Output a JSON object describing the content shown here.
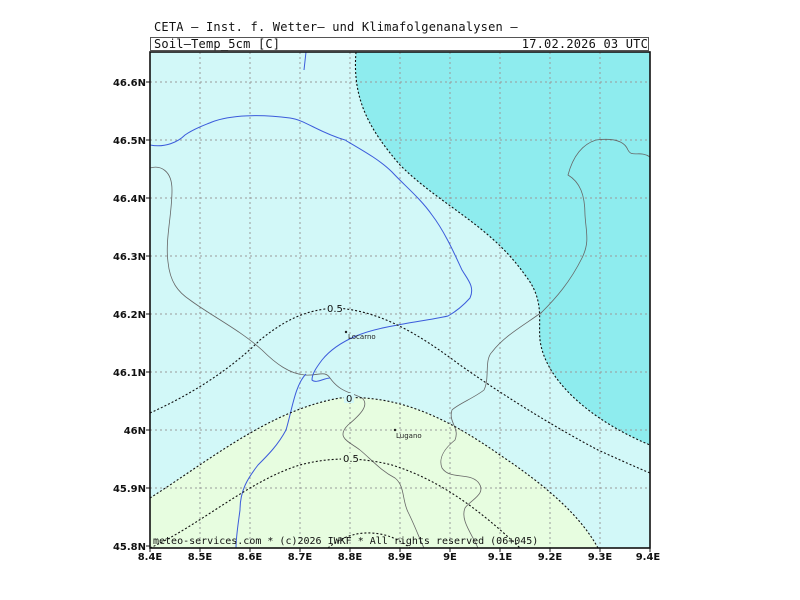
{
  "header": {
    "line1": "CETA — Inst. f. Wetter— und Klimafolgenanalysen —",
    "field": "Soil—Temp_5cm [C]",
    "valid_time": "17.02.2026 03 UTC"
  },
  "footer": "meteo-services.com * (c)2026 IWKF * All rights reserved (06+045)",
  "axes": {
    "x_ticks": [
      "8.4E",
      "8.5E",
      "8.6E",
      "8.7E",
      "8.8E",
      "8.9E",
      "9E",
      "9.1E",
      "9.2E",
      "9.3E",
      "9.4E"
    ],
    "y_ticks": [
      "46.6N",
      "46.5N",
      "46.4N",
      "46.3N",
      "46.2N",
      "46.1N",
      "46N",
      "45.9N",
      "45.8N"
    ]
  },
  "cities": [
    {
      "name": "Locarno"
    },
    {
      "name": "Lugano"
    }
  ],
  "contours": [
    {
      "label": "0.5"
    },
    {
      "label": "0"
    },
    {
      "label": "0.5"
    }
  ],
  "colors": {
    "band_cold": "#8eecee",
    "band_mid": "#d2f8f8",
    "band_warm": "#e7fde0",
    "river": "#3b5bdb",
    "border": "#666666",
    "grid": "#9a9a9a"
  }
}
